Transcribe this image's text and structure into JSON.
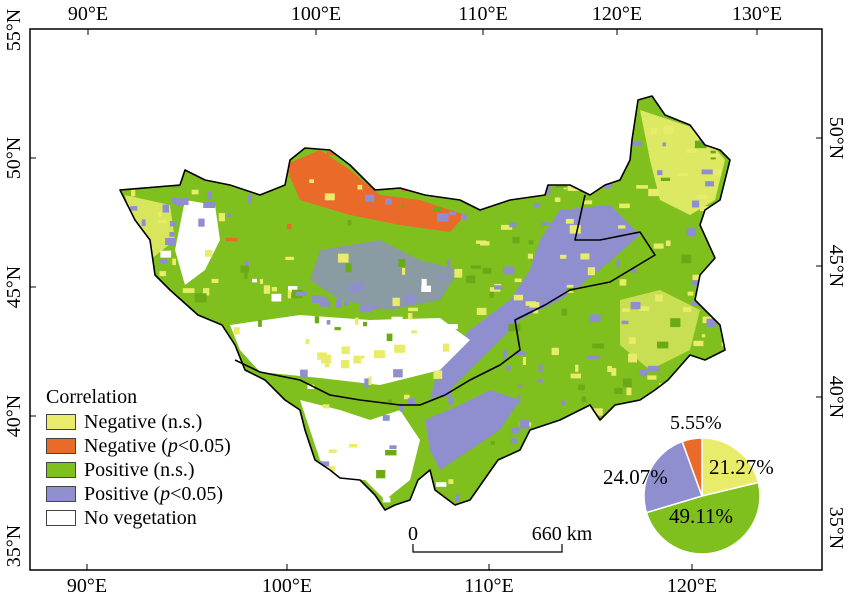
{
  "map": {
    "top_lon_labels": [
      "90°E",
      "100°E",
      "110°E",
      "120°E",
      "130°E"
    ],
    "bottom_lon_labels": [
      "90°E",
      "100°E",
      "110°E",
      "120°E"
    ],
    "left_lat_labels": [
      "55°N",
      "50°N",
      "45°N",
      "40°N",
      "35°N"
    ],
    "right_lat_labels": [
      "50°N",
      "45°N",
      "40°N",
      "35°N"
    ]
  },
  "legend": {
    "title": "Correlation",
    "items": [
      {
        "label": "Negative (n.s.)",
        "color": "#e8ec6a"
      },
      {
        "label_pre": "Negative (",
        "label_p": "p",
        "label_post": "<0.05)",
        "color": "#ea6a2a"
      },
      {
        "label": "Positive (n.s.)",
        "color": "#7fbf1e"
      },
      {
        "label_pre": "Positive (",
        "label_p": "p",
        "label_post": "<0.05)",
        "color": "#8f8fd0"
      },
      {
        "label": "No vegetation",
        "color": "#ffffff"
      }
    ]
  },
  "scalebar": {
    "start": "0",
    "end": "660 km"
  },
  "pie": {
    "slices": [
      {
        "name": "Negative (n.s.)",
        "percent": 21.27,
        "label": "21.27%",
        "color": "#e8ec6a"
      },
      {
        "name": "Positive (n.s.)",
        "percent": 49.11,
        "label": "49.11%",
        "color": "#7fbf1e"
      },
      {
        "name": "Positive (p<0.05)",
        "percent": 24.07,
        "label": "24.07%",
        "color": "#8f8fd0"
      },
      {
        "name": "Negative (p<0.05)",
        "percent": 5.55,
        "label": "5.55%",
        "color": "#ea6a2a"
      }
    ]
  }
}
